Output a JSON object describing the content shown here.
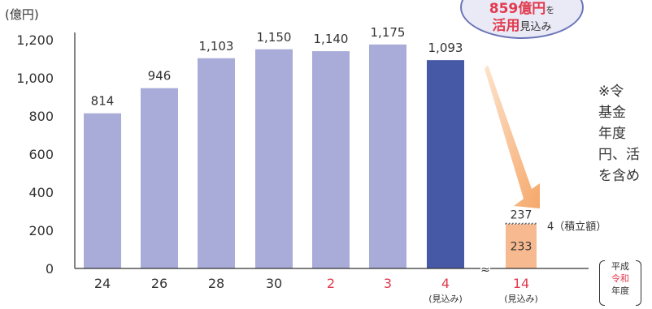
{
  "chart_data": {
    "type": "bar",
    "unit_label": "(億円)",
    "categories": [
      "24",
      "26",
      "28",
      "30",
      "2",
      "3",
      "4",
      "14"
    ],
    "category_colors": [
      "#333333",
      "#333333",
      "#333333",
      "#333333",
      "#e23a4e",
      "#e23a4e",
      "#e23a4e",
      "#e23a4e"
    ],
    "sublabels": [
      "",
      "",
      "",
      "",
      "",
      "",
      "(見込み)",
      "(見込み)"
    ],
    "values": [
      814,
      946,
      1103,
      1150,
      1140,
      1175,
      1093,
      237
    ],
    "value_labels": [
      "814",
      "946",
      "1,103",
      "1,150",
      "1,140",
      "1,175",
      "1,093",
      "237"
    ],
    "bar_colors": [
      "#a9acd8",
      "#a9acd8",
      "#a9acd8",
      "#a9acd8",
      "#a9acd8",
      "#a9acd8",
      "#4659a6",
      "#f7b98f"
    ],
    "stack_last": {
      "lower_value": 233,
      "lower_label": "233",
      "upper_value": 4,
      "upper_label": "4（積立額）"
    },
    "yticks": [
      0,
      200,
      400,
      600,
      800,
      1000,
      1200
    ],
    "ytick_labels": [
      "0",
      "200",
      "400",
      "600",
      "800",
      "1,000",
      "1,200"
    ],
    "ylim": [
      0,
      1200
    ],
    "axis_break": "≈"
  },
  "callout": {
    "line1": "859億円",
    "line1_suffix": "を",
    "line2": "活用",
    "line2_suffix": "見込み"
  },
  "note_lines": [
    "※令",
    "基金",
    "年度",
    "円、活",
    "を含め"
  ],
  "era_labels": {
    "heisei": "平成",
    "reiwa": "令和",
    "year": "年度"
  },
  "colors": {
    "arrow": "#f5a86a",
    "axis": "#333333"
  }
}
